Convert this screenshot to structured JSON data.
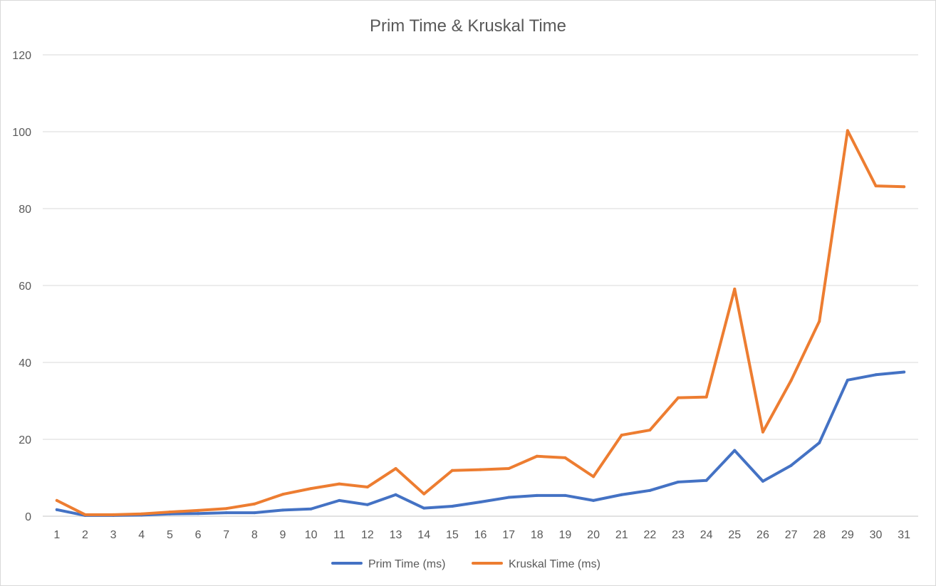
{
  "chart_data": {
    "type": "line",
    "title": "Prim Time & Kruskal Time",
    "xlabel": "",
    "ylabel": "",
    "ylim": [
      0,
      120
    ],
    "yticks": [
      0,
      20,
      40,
      60,
      80,
      100,
      120
    ],
    "grid": true,
    "legend_position": "bottom",
    "categories": [
      "1",
      "2",
      "3",
      "4",
      "5",
      "6",
      "7",
      "8",
      "9",
      "10",
      "11",
      "12",
      "13",
      "14",
      "15",
      "16",
      "17",
      "18",
      "19",
      "20",
      "21",
      "22",
      "23",
      "24",
      "25",
      "26",
      "27",
      "28",
      "29",
      "30",
      "31"
    ],
    "series": [
      {
        "name": "Prim Time (ms)",
        "color": "#4472c4",
        "values": [
          1.7,
          0.2,
          0.2,
          0.3,
          0.6,
          0.7,
          0.9,
          0.9,
          1.6,
          1.9,
          4.1,
          3.0,
          5.6,
          2.1,
          2.6,
          3.7,
          4.9,
          5.4,
          5.4,
          4.1,
          5.6,
          6.7,
          8.9,
          9.3,
          17.1,
          9.1,
          13.2,
          19.1,
          35.4,
          36.8,
          37.5
        ]
      },
      {
        "name": "Kruskal Time (ms)",
        "color": "#ed7d31",
        "values": [
          4.1,
          0.4,
          0.4,
          0.6,
          1.1,
          1.5,
          2.0,
          3.2,
          5.7,
          7.2,
          8.4,
          7.6,
          12.4,
          5.8,
          11.9,
          12.1,
          12.4,
          15.6,
          15.2,
          10.3,
          21.1,
          22.4,
          30.8,
          31.0,
          59.1,
          21.9,
          35.3,
          50.7,
          100.3,
          85.9,
          85.7
        ]
      }
    ]
  }
}
